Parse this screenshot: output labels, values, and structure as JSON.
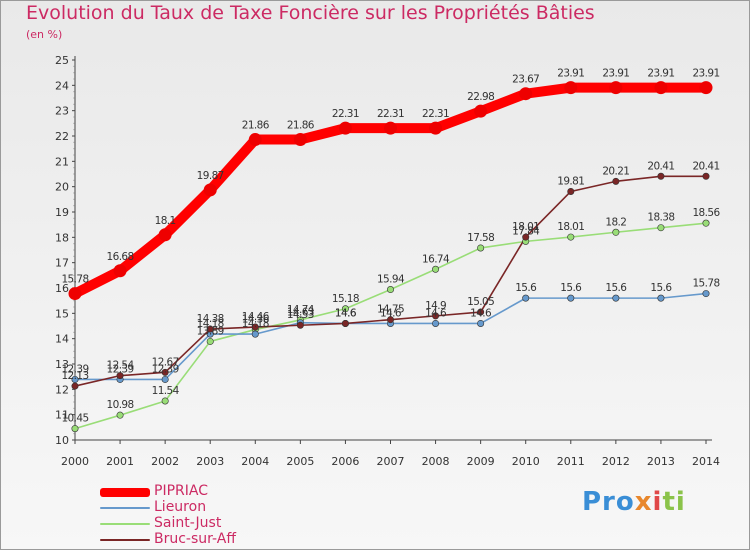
{
  "title": "Evolution du Taux de Taxe Foncière sur les Propriétés Bâties",
  "subtitle": "(en %)",
  "brand": "Proxiti",
  "chart_data": {
    "type": "line",
    "title": "Evolution du Taux de Taxe Foncière sur les Propriétés Bâties",
    "ylabel": "(en %)",
    "xlabel": "",
    "x": [
      2000,
      2001,
      2002,
      2003,
      2004,
      2005,
      2006,
      2007,
      2008,
      2009,
      2010,
      2011,
      2012,
      2013,
      2014
    ],
    "ylim": [
      10,
      25
    ],
    "yticks": [
      10,
      11,
      12,
      13,
      14,
      15,
      16,
      17,
      18,
      19,
      20,
      21,
      22,
      23,
      24,
      25
    ],
    "grid": false,
    "legend_position": "bottom-left",
    "series": [
      {
        "name": "PIPRIAC",
        "color": "#ff0000",
        "values": [
          15.78,
          16.68,
          18.1,
          19.87,
          21.86,
          21.86,
          22.31,
          22.31,
          22.31,
          22.98,
          23.67,
          23.91,
          23.91,
          23.91,
          23.91
        ]
      },
      {
        "name": "Lieuron",
        "color": "#6699cc",
        "values": [
          12.39,
          12.39,
          12.39,
          14.18,
          14.18,
          14.63,
          14.6,
          14.6,
          14.6,
          14.6,
          15.6,
          15.6,
          15.6,
          15.6,
          15.78
        ]
      },
      {
        "name": "Saint-Just",
        "color": "#99dd77",
        "values": [
          10.45,
          10.98,
          11.54,
          13.89,
          14.36,
          14.74,
          15.18,
          15.94,
          16.74,
          17.58,
          17.84,
          18.01,
          18.2,
          18.38,
          18.56
        ]
      },
      {
        "name": "Bruc-sur-Aff",
        "color": "#7a2626",
        "values": [
          12.13,
          12.54,
          12.67,
          14.38,
          14.46,
          14.53,
          14.6,
          14.75,
          14.9,
          15.05,
          18.01,
          19.81,
          20.21,
          20.41,
          20.41
        ]
      }
    ]
  }
}
